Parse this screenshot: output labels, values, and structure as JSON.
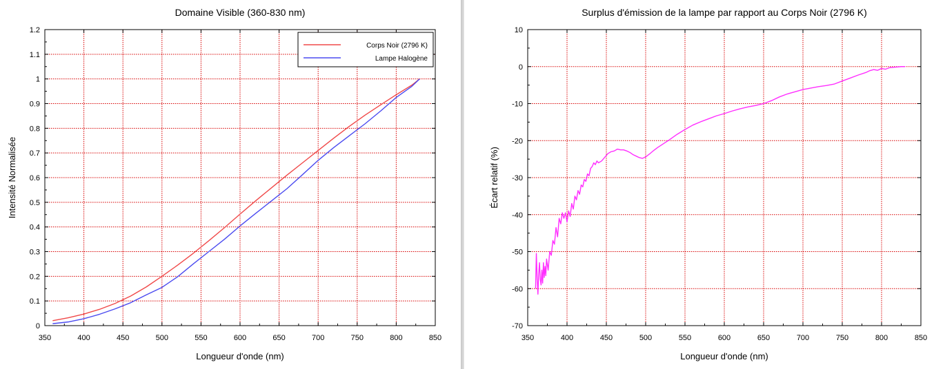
{
  "colors": {
    "blackbody": "#f04848",
    "halogen": "#4a4af0",
    "deviation": "#ff2eff",
    "grid": "#d80000"
  },
  "chart_data": [
    {
      "type": "line",
      "title": "Domaine Visible (360-830 nm)",
      "xlabel": "Longueur d'onde (nm)",
      "ylabel": "Intensité Normalisée",
      "xlim": [
        350,
        850
      ],
      "ylim": [
        0,
        1.2
      ],
      "xticks": [
        "350",
        "400",
        "450",
        "500",
        "550",
        "600",
        "650",
        "700",
        "750",
        "800",
        "850"
      ],
      "yticks": [
        "0",
        "0.1",
        "0.2",
        "0.3",
        "0.4",
        "0.5",
        "0.6",
        "0.7",
        "0.8",
        "0.9",
        "1",
        "1.1",
        "1.2"
      ],
      "grid": true,
      "legend_position": "top-right",
      "series": [
        {
          "name": "Corps Noir (2796 K)",
          "color": "#f04848",
          "x": [
            360,
            380,
            400,
            420,
            440,
            460,
            480,
            500,
            520,
            540,
            560,
            580,
            600,
            620,
            640,
            660,
            680,
            700,
            720,
            740,
            760,
            780,
            800,
            820,
            830
          ],
          "y": [
            0.02,
            0.032,
            0.047,
            0.066,
            0.09,
            0.12,
            0.157,
            0.2,
            0.245,
            0.293,
            0.344,
            0.397,
            0.452,
            0.506,
            0.558,
            0.61,
            0.66,
            0.71,
            0.76,
            0.808,
            0.853,
            0.895,
            0.936,
            0.975,
            1.0
          ]
        },
        {
          "name": "Lampe Halogène",
          "color": "#4a4af0",
          "x": [
            360,
            380,
            400,
            420,
            440,
            460,
            480,
            500,
            520,
            540,
            560,
            580,
            600,
            620,
            640,
            660,
            680,
            700,
            720,
            740,
            760,
            780,
            800,
            820,
            830
          ],
          "y": [
            0.008,
            0.015,
            0.028,
            0.046,
            0.068,
            0.093,
            0.125,
            0.155,
            0.198,
            0.25,
            0.3,
            0.35,
            0.404,
            0.455,
            0.505,
            0.555,
            0.612,
            0.67,
            0.722,
            0.77,
            0.818,
            0.87,
            0.925,
            0.97,
            1.0
          ]
        }
      ]
    },
    {
      "type": "line",
      "title": "Surplus d'émission de la lampe par rapport au Corps Noir (2796 K)",
      "xlabel": "Longueur d'onde (nm)",
      "ylabel": "Écart relatif (%)",
      "xlim": [
        350,
        850
      ],
      "ylim": [
        -70,
        10
      ],
      "xticks": [
        "350",
        "400",
        "450",
        "500",
        "550",
        "600",
        "650",
        "700",
        "750",
        "800",
        "850"
      ],
      "yticks": [
        "-70",
        "-60",
        "-50",
        "-40",
        "-30",
        "-20",
        "-10",
        "0",
        "10"
      ],
      "grid": true,
      "series": [
        {
          "name": "Écart relatif",
          "color": "#ff2eff",
          "x": [
            360,
            361,
            362,
            363,
            364,
            365,
            366,
            367,
            368,
            369,
            370,
            371,
            372,
            373,
            374,
            376,
            378,
            380,
            382,
            384,
            386,
            388,
            390,
            392,
            394,
            396,
            398,
            400,
            402,
            404,
            406,
            408,
            410,
            412,
            414,
            416,
            418,
            420,
            422,
            424,
            426,
            428,
            430,
            432,
            434,
            436,
            438,
            440,
            444,
            448,
            452,
            456,
            460,
            464,
            468,
            472,
            476,
            480,
            484,
            488,
            492,
            496,
            500,
            505,
            510,
            515,
            520,
            530,
            540,
            550,
            560,
            570,
            580,
            590,
            600,
            610,
            620,
            630,
            640,
            650,
            660,
            670,
            680,
            690,
            700,
            710,
            720,
            730,
            740,
            750,
            760,
            770,
            780,
            785,
            790,
            795,
            800,
            805,
            810,
            815,
            820,
            825,
            830
          ],
          "y": [
            -60,
            -50.5,
            -57,
            -61.5,
            -56,
            -53,
            -57.5,
            -59,
            -55,
            -58.5,
            -53,
            -57,
            -54,
            -56.5,
            -52,
            -55,
            -50,
            -51,
            -47,
            -48,
            -43.5,
            -46,
            -41,
            -42.5,
            -39.5,
            -41,
            -39.5,
            -42,
            -39,
            -40.5,
            -37,
            -38.5,
            -35,
            -36,
            -33.5,
            -34.5,
            -32,
            -32.5,
            -30.5,
            -31,
            -29,
            -29.5,
            -27.5,
            -27,
            -26,
            -26.5,
            -25.5,
            -26,
            -25.5,
            -24.5,
            -23.5,
            -23,
            -22.8,
            -22.3,
            -22.5,
            -22.5,
            -22.8,
            -23.2,
            -23.8,
            -24.2,
            -24.6,
            -24.8,
            -24.4,
            -23.6,
            -22.7,
            -21.9,
            -21.2,
            -19.8,
            -18.3,
            -17,
            -15.8,
            -14.9,
            -14.1,
            -13.3,
            -12.7,
            -12,
            -11.4,
            -10.9,
            -10.5,
            -10,
            -9.2,
            -8.2,
            -7.4,
            -6.8,
            -6.2,
            -5.8,
            -5.4,
            -5.1,
            -4.7,
            -3.9,
            -3.1,
            -2.3,
            -1.6,
            -1.1,
            -0.8,
            -1.0,
            -0.5,
            -0.7,
            -0.3,
            -0.2,
            -0.1,
            0,
            0
          ]
        }
      ]
    }
  ]
}
